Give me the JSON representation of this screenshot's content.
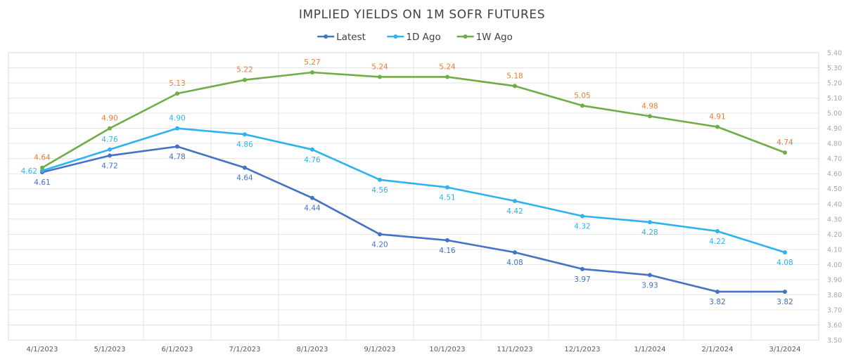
{
  "chart_data": {
    "type": "line",
    "title": "IMPLIED YIELDS ON 1M SOFR FUTURES",
    "categories": [
      "4/1/2023",
      "5/1/2023",
      "6/1/2023",
      "7/1/2023",
      "8/1/2023",
      "9/1/2023",
      "10/1/2023",
      "11/1/2023",
      "12/1/2023",
      "1/1/2024",
      "2/1/2024",
      "3/1/2024"
    ],
    "series": [
      {
        "name": "Latest",
        "color": "#4472c4",
        "label_color": "#4472c4",
        "values": [
          4.61,
          4.72,
          4.78,
          4.64,
          4.44,
          4.2,
          4.16,
          4.08,
          3.97,
          3.93,
          3.82,
          3.82
        ],
        "labels": [
          "4.61",
          "4.72",
          "4.78",
          "4.64",
          "4.44",
          "4.20",
          "4.16",
          "4.08",
          "3.97",
          "3.93",
          "3.82",
          "3.82"
        ]
      },
      {
        "name": "1D Ago",
        "color": "#2eb3ef",
        "label_color": "#2eb3ef",
        "values": [
          4.62,
          4.76,
          4.9,
          4.86,
          4.76,
          4.56,
          4.51,
          4.42,
          4.32,
          4.28,
          4.22,
          4.08
        ],
        "labels": [
          "4.62",
          "4.76",
          "4.90",
          "4.86",
          "4.76",
          "4.56",
          "4.51",
          "4.42",
          "4.32",
          "4.28",
          "4.22",
          "4.08"
        ]
      },
      {
        "name": "1W Ago",
        "color": "#70ad47",
        "label_color": "#ed7d31",
        "values": [
          4.64,
          4.9,
          5.13,
          5.22,
          5.27,
          5.24,
          5.24,
          5.18,
          5.05,
          4.98,
          4.91,
          4.74
        ],
        "labels": [
          "4.64",
          "4.90",
          "5.13",
          "5.22",
          "5.27",
          "5.24",
          "5.24",
          "5.18",
          "5.05",
          "4.98",
          "4.91",
          "4.74"
        ]
      }
    ],
    "ylim": [
      3.5,
      5.4
    ],
    "ytick_step": 0.1,
    "y_axis_position": "right",
    "grid": true,
    "legend_position": "top-center"
  }
}
